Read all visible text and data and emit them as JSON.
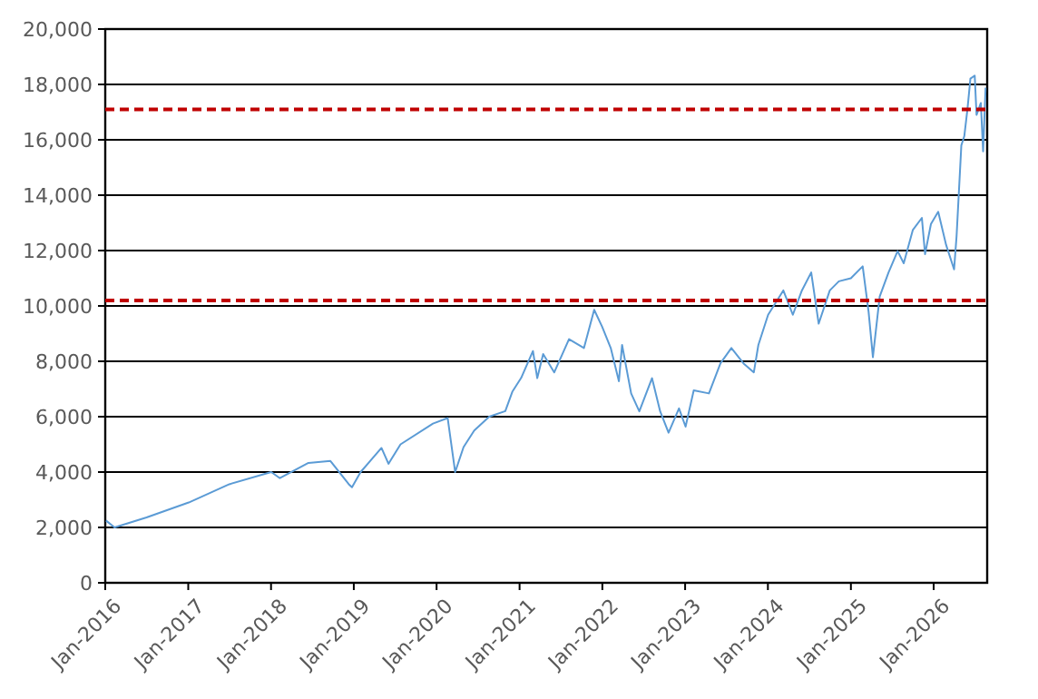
{
  "chart_data": {
    "type": "line",
    "x": [
      "2016-01-04",
      "2016-02-11",
      "2016-07-01",
      "2017-01-03",
      "2017-07-01",
      "2018-01-02",
      "2018-02-09",
      "2018-06-15",
      "2018-09-20",
      "2018-12-10",
      "2018-12-24",
      "2019-01-31",
      "2019-05-03",
      "2019-06-03",
      "2019-07-26",
      "2019-12-16",
      "2020-02-19",
      "2020-03-23",
      "2020-04-29",
      "2020-06-15",
      "2020-08-20",
      "2020-10-30",
      "2020-11-30",
      "2021-01-08",
      "2021-03-01",
      "2021-03-20",
      "2021-04-15",
      "2021-06-03",
      "2021-08-07",
      "2021-10-12",
      "2021-11-26",
      "2021-12-31",
      "2022-02-07",
      "2022-03-15",
      "2022-03-29",
      "2022-05-08",
      "2022-06-13",
      "2022-08-08",
      "2022-09-13",
      "2022-10-20",
      "2022-12-05",
      "2023-01-03",
      "2023-02-08",
      "2023-04-16",
      "2023-06-06",
      "2023-07-24",
      "2023-09-15",
      "2023-10-31",
      "2023-11-20",
      "2024-01-02",
      "2024-03-09",
      "2024-04-20",
      "2024-05-30",
      "2024-07-10",
      "2024-08-12",
      "2024-09-30",
      "2024-11-09",
      "2025-01-01",
      "2025-02-22",
      "2025-03-20",
      "2025-04-08",
      "2025-05-08",
      "2025-06-16",
      "2025-07-26",
      "2025-08-22",
      "2025-10-01",
      "2025-11-10",
      "2025-11-24",
      "2025-12-20",
      "2026-01-21",
      "2026-02-25",
      "2026-04-01",
      "2026-04-12",
      "2026-05-03",
      "2026-05-16",
      "2026-05-30",
      "2026-06-12",
      "2026-07-01",
      "2026-07-09",
      "2026-07-28",
      "2026-08-07",
      "2026-08-18"
    ],
    "series": [
      {
        "color": "#5b9bd5",
        "values": [
          2250,
          2000,
          2360,
          2900,
          3560,
          4000,
          3780,
          4330,
          4400,
          3560,
          3450,
          4000,
          4870,
          4300,
          5000,
          5750,
          5950,
          4000,
          4900,
          5500,
          6000,
          6200,
          6900,
          7400,
          8370,
          7390,
          8260,
          7600,
          8800,
          8480,
          9860,
          9250,
          8480,
          7280,
          8590,
          6840,
          6190,
          7390,
          6190,
          5420,
          6300,
          5640,
          6950,
          6840,
          7930,
          8480,
          7930,
          7600,
          8590,
          9680,
          10560,
          9680,
          10560,
          11210,
          9360,
          10560,
          10890,
          11000,
          11430,
          9790,
          8150,
          10340,
          11210,
          11980,
          11540,
          12740,
          13180,
          11870,
          12960,
          13400,
          12200,
          11320,
          12520,
          15800,
          16130,
          17110,
          18210,
          18320,
          16900,
          17330,
          15580,
          17880
        ]
      }
    ],
    "xlim": [
      "2016-01-01",
      "2026-08-25"
    ],
    "xticks": [
      {
        "value": "2016-01-01",
        "label": "Jan-2016"
      },
      {
        "value": "2017-01-01",
        "label": "Jan-2017"
      },
      {
        "value": "2018-01-01",
        "label": "Jan-2018"
      },
      {
        "value": "2019-01-01",
        "label": "Jan-2019"
      },
      {
        "value": "2020-01-01",
        "label": "Jan-2020"
      },
      {
        "value": "2021-01-01",
        "label": "Jan-2021"
      },
      {
        "value": "2022-01-01",
        "label": "Jan-2022"
      },
      {
        "value": "2023-01-01",
        "label": "Jan-2023"
      },
      {
        "value": "2024-01-01",
        "label": "Jan-2024"
      },
      {
        "value": "2025-01-01",
        "label": "Jan-2025"
      },
      {
        "value": "2026-01-01",
        "label": "Jan-2026"
      }
    ],
    "ylim": [
      0,
      20000
    ],
    "yticks": [
      0,
      {
        "value": 2000,
        "label": "2,000"
      },
      {
        "value": 4000,
        "label": "4,000"
      },
      {
        "value": 6000,
        "label": "6,000"
      },
      {
        "value": 8000,
        "label": "8,000"
      },
      {
        "value": 10000,
        "label": "10,000"
      },
      {
        "value": 12000,
        "label": "12,000"
      },
      {
        "value": 14000,
        "label": "14,000"
      },
      {
        "value": 16000,
        "label": "16,000"
      },
      {
        "value": 18000,
        "label": "18,000"
      },
      {
        "value": 20000,
        "label": "20,000"
      }
    ],
    "grid": "y",
    "marker": "none",
    "line_style": "solid",
    "ref_lines": [
      {
        "axis": "y",
        "value": 17100,
        "color": "#c00000",
        "line_style": "dashed"
      },
      {
        "axis": "y",
        "value": 10200,
        "color": "#c00000",
        "line_style": "dashed"
      }
    ]
  }
}
